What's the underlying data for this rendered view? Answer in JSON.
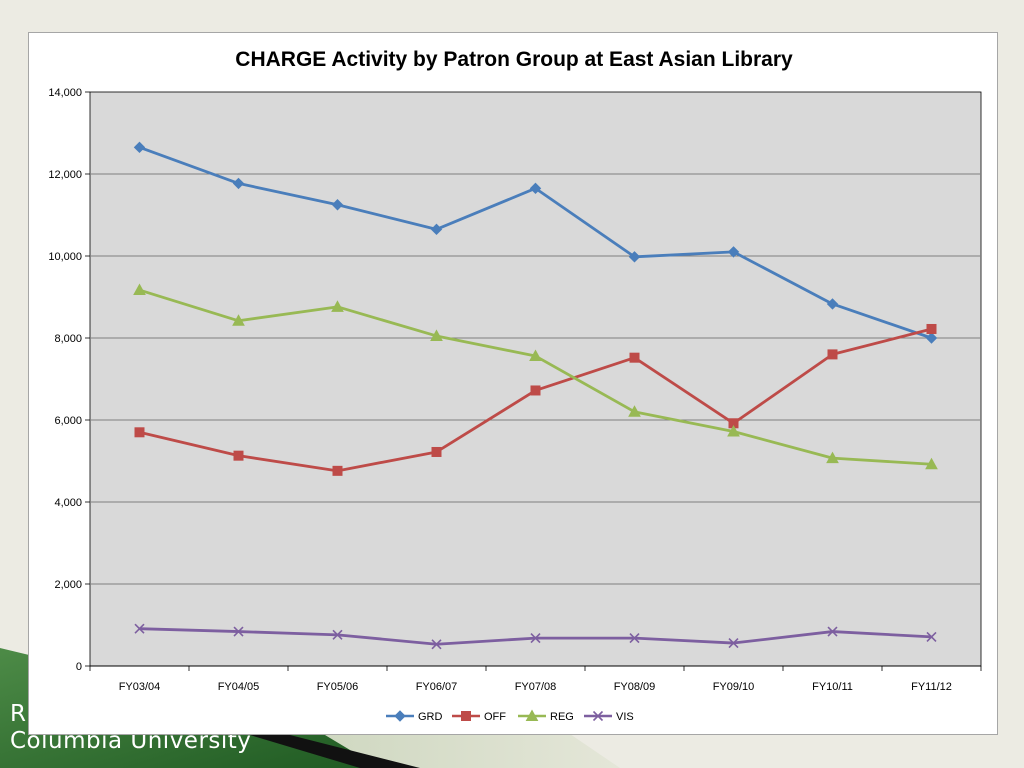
{
  "slide": {
    "org_line1": "R",
    "org_line2": "Columbia University",
    "accent_green": "#3d7a3a",
    "accent_black": "#111111"
  },
  "chart_data": {
    "type": "line",
    "title": "CHARGE Activity by Patron Group at East Asian Library",
    "xlabel": "",
    "ylabel": "",
    "categories": [
      "FY03/04",
      "FY04/05",
      "FY05/06",
      "FY06/07",
      "FY07/08",
      "FY08/09",
      "FY09/10",
      "FY10/11",
      "FY11/12"
    ],
    "ylim": [
      0,
      14000
    ],
    "yticks": [
      0,
      2000,
      4000,
      6000,
      8000,
      10000,
      12000,
      14000
    ],
    "ytick_labels": [
      "0",
      "2,000",
      "4,000",
      "6,000",
      "8,000",
      "10,000",
      "12,000",
      "14,000"
    ],
    "grid": true,
    "plot_background": "#d9d9d9",
    "legend_position": "bottom",
    "series": [
      {
        "name": "GRD",
        "color": "#4a7ebb",
        "marker": "diamond",
        "values": [
          12650,
          11770,
          11250,
          10650,
          11650,
          9980,
          10100,
          8830,
          8000
        ]
      },
      {
        "name": "OFF",
        "color": "#be4b48",
        "marker": "square",
        "values": [
          5700,
          5130,
          4760,
          5220,
          6720,
          7520,
          5920,
          7600,
          8220
        ]
      },
      {
        "name": "REG",
        "color": "#98b954",
        "marker": "triangle",
        "values": [
          9170,
          8420,
          8760,
          8050,
          7560,
          6200,
          5720,
          5070,
          4920
        ]
      },
      {
        "name": "VIS",
        "color": "#7d5fa0",
        "marker": "x",
        "values": [
          910,
          840,
          760,
          530,
          680,
          680,
          560,
          840,
          710
        ]
      }
    ]
  }
}
